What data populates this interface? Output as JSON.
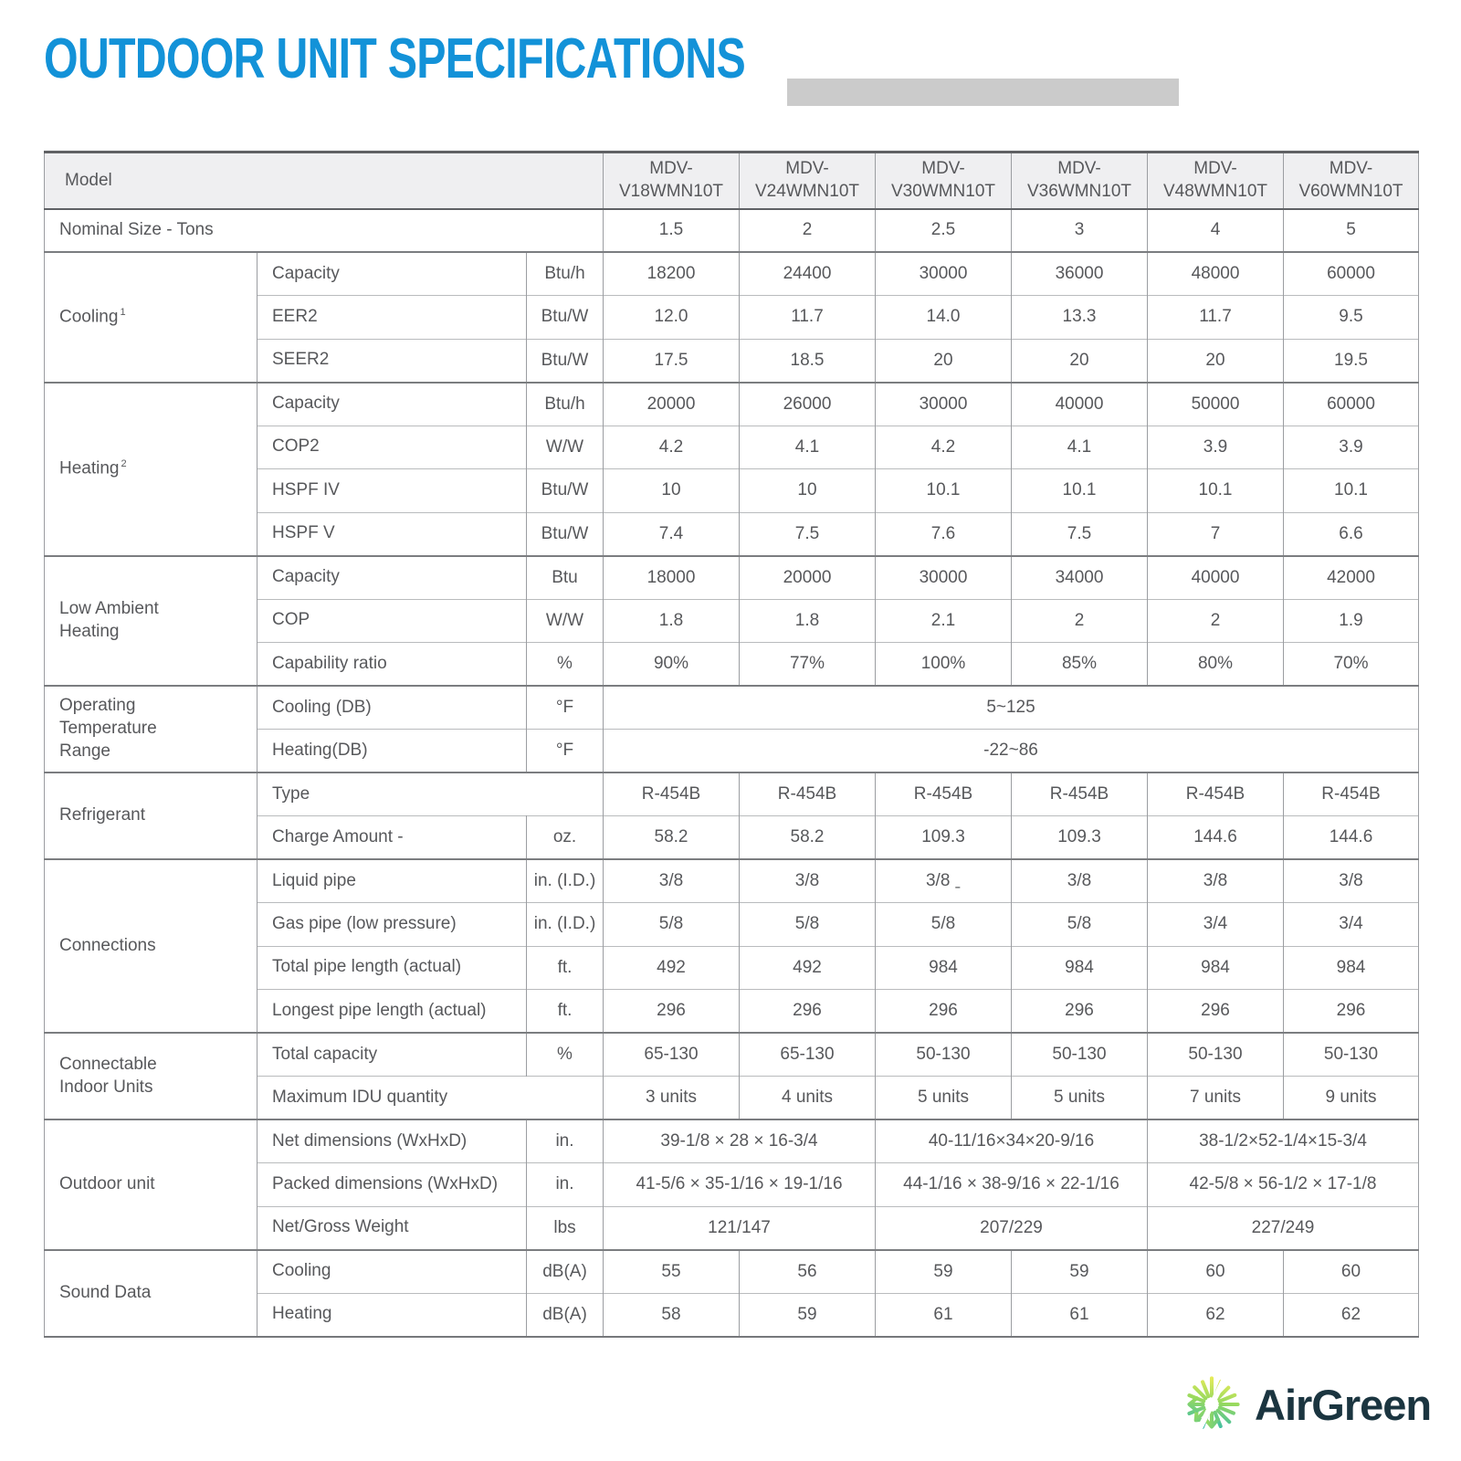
{
  "title": {
    "text": "OUTDOOR UNIT SPECIFICATIONS"
  },
  "colors": {
    "title_blue": "#1392d8",
    "header_blue": "#1d9ad9",
    "header_bg": "#efeff1",
    "title_bar_gray": "#cbcbcb",
    "border_dark": "#606164",
    "border_section": "#7b7d80",
    "border_light": "#b9bbbd",
    "text_gray": "#57585b",
    "logo_text": "#1b3540",
    "logo_gradient": [
      "#f2ee58",
      "#96d95f",
      "#27b7ba"
    ]
  },
  "table": {
    "header": {
      "model_label": "Model",
      "models": [
        {
          "l1": "MDV-",
          "l2": "V18WMN10T"
        },
        {
          "l1": "MDV-",
          "l2": "V24WMN10T"
        },
        {
          "l1": "MDV-",
          "l2": "V30WMN10T"
        },
        {
          "l1": "MDV-",
          "l2": "V36WMN10T"
        },
        {
          "l1": "MDV-",
          "l2": "V48WMN10T"
        },
        {
          "l1": "MDV-",
          "l2": "V60WMN10T"
        }
      ]
    },
    "rows": [
      {
        "name": "row-nominal-size",
        "sect": true,
        "cells": [
          {
            "text": "Nominal Size - Tons",
            "type": "label-span",
            "colspan": 3
          },
          {
            "text": "1.5"
          },
          {
            "text": "2"
          },
          {
            "text": "2.5"
          },
          {
            "text": "3"
          },
          {
            "text": "4"
          },
          {
            "text": "5"
          }
        ]
      },
      {
        "name": "row-cooling-capacity",
        "sect": true,
        "cells": [
          {
            "text": "Cooling",
            "sup": "1",
            "type": "group",
            "rowspan": 3
          },
          {
            "text": "Capacity",
            "type": "label"
          },
          {
            "text": "Btu/h",
            "type": "unit"
          },
          {
            "text": "18200"
          },
          {
            "text": "24400"
          },
          {
            "text": "30000"
          },
          {
            "text": "36000"
          },
          {
            "text": "48000"
          },
          {
            "text": "60000"
          }
        ]
      },
      {
        "name": "row-cooling-eer2",
        "cells": [
          {
            "text": "EER2",
            "type": "label"
          },
          {
            "text": "Btu/W",
            "type": "unit"
          },
          {
            "text": "12.0"
          },
          {
            "text": "11.7"
          },
          {
            "text": "14.0"
          },
          {
            "text": "13.3"
          },
          {
            "text": "11.7"
          },
          {
            "text": "9.5"
          }
        ]
      },
      {
        "name": "row-cooling-seer2",
        "cells": [
          {
            "text": "SEER2",
            "type": "label"
          },
          {
            "text": "Btu/W",
            "type": "unit"
          },
          {
            "text": "17.5"
          },
          {
            "text": "18.5"
          },
          {
            "text": "20"
          },
          {
            "text": "20"
          },
          {
            "text": "20"
          },
          {
            "text": "19.5"
          }
        ]
      },
      {
        "name": "row-heating-capacity",
        "sect": true,
        "cells": [
          {
            "text": "Heating",
            "sup": "2",
            "type": "group",
            "rowspan": 4
          },
          {
            "text": "Capacity",
            "type": "label"
          },
          {
            "text": "Btu/h",
            "type": "unit"
          },
          {
            "text": "20000"
          },
          {
            "text": "26000"
          },
          {
            "text": "30000"
          },
          {
            "text": "40000"
          },
          {
            "text": "50000"
          },
          {
            "text": "60000"
          }
        ]
      },
      {
        "name": "row-heating-cop2",
        "cells": [
          {
            "text": "COP2",
            "type": "label"
          },
          {
            "text": "W/W",
            "type": "unit"
          },
          {
            "text": "4.2"
          },
          {
            "text": "4.1"
          },
          {
            "text": "4.2"
          },
          {
            "text": "4.1"
          },
          {
            "text": "3.9"
          },
          {
            "text": "3.9"
          }
        ]
      },
      {
        "name": "row-heating-hspf-iv",
        "cells": [
          {
            "text": "HSPF IV",
            "type": "label"
          },
          {
            "text": "Btu/W",
            "type": "unit"
          },
          {
            "text": "10"
          },
          {
            "text": "10"
          },
          {
            "text": "10.1"
          },
          {
            "text": "10.1"
          },
          {
            "text": "10.1"
          },
          {
            "text": "10.1"
          }
        ]
      },
      {
        "name": "row-heating-hspf-v",
        "cells": [
          {
            "text": "HSPF V",
            "type": "label"
          },
          {
            "text": "Btu/W",
            "type": "unit"
          },
          {
            "text": "7.4"
          },
          {
            "text": "7.5"
          },
          {
            "text": "7.6"
          },
          {
            "text": "7.5"
          },
          {
            "text": "7"
          },
          {
            "text": "6.6"
          }
        ]
      },
      {
        "name": "row-lah-capacity",
        "sect": true,
        "cells": [
          {
            "text": "Low Ambient Heating",
            "type": "group",
            "rowspan": 3
          },
          {
            "text": "Capacity",
            "type": "label"
          },
          {
            "text": "Btu",
            "type": "unit"
          },
          {
            "text": "18000"
          },
          {
            "text": "20000"
          },
          {
            "text": "30000"
          },
          {
            "text": "34000"
          },
          {
            "text": "40000"
          },
          {
            "text": "42000"
          }
        ]
      },
      {
        "name": "row-lah-cop",
        "cells": [
          {
            "text": "COP",
            "type": "label"
          },
          {
            "text": "W/W",
            "type": "unit"
          },
          {
            "text": "1.8"
          },
          {
            "text": "1.8"
          },
          {
            "text": "2.1"
          },
          {
            "text": "2"
          },
          {
            "text": "2"
          },
          {
            "text": "1.9"
          }
        ]
      },
      {
        "name": "row-lah-capability-ratio",
        "cells": [
          {
            "text": "Capability ratio",
            "type": "label"
          },
          {
            "text": "%",
            "type": "unit"
          },
          {
            "text": "90%"
          },
          {
            "text": "77%"
          },
          {
            "text": "100%"
          },
          {
            "text": "85%"
          },
          {
            "text": "80%"
          },
          {
            "text": "70%"
          }
        ]
      },
      {
        "name": "row-optemp-cooling",
        "sect": true,
        "cells": [
          {
            "text": "Operating Temperature Range",
            "type": "group",
            "rowspan": 2
          },
          {
            "text": "Cooling (DB)",
            "type": "label"
          },
          {
            "text": "°F",
            "type": "unit"
          },
          {
            "text": "5~125",
            "colspan": 6
          }
        ]
      },
      {
        "name": "row-optemp-heating",
        "cells": [
          {
            "text": "Heating(DB)",
            "type": "label"
          },
          {
            "text": "°F",
            "type": "unit"
          },
          {
            "text": "-22~86",
            "colspan": 6
          }
        ]
      },
      {
        "name": "row-refrigerant-type",
        "sect": true,
        "cells": [
          {
            "text": "Refrigerant",
            "type": "group",
            "rowspan": 2
          },
          {
            "text": "Type",
            "type": "label",
            "colspan": 2
          },
          {
            "text": "R-454B"
          },
          {
            "text": "R-454B"
          },
          {
            "text": "R-454B"
          },
          {
            "text": "R-454B"
          },
          {
            "text": "R-454B"
          },
          {
            "text": "R-454B"
          }
        ]
      },
      {
        "name": "row-refrigerant-charge",
        "cells": [
          {
            "text": "Charge Amount -",
            "type": "label"
          },
          {
            "text": "oz.",
            "type": "unit"
          },
          {
            "text": "58.2"
          },
          {
            "text": "58.2"
          },
          {
            "text": "109.3"
          },
          {
            "text": "109.3"
          },
          {
            "text": "144.6"
          },
          {
            "text": "144.6"
          }
        ]
      },
      {
        "name": "row-connections-liquid-pipe",
        "sect": true,
        "cells": [
          {
            "text": "Connections",
            "type": "group",
            "rowspan": 4
          },
          {
            "text": "Liquid pipe",
            "type": "label"
          },
          {
            "text": "in. (I.D.)",
            "type": "unit"
          },
          {
            "text": "3/8"
          },
          {
            "text": "3/8"
          },
          {
            "text": "3/8 ˍ"
          },
          {
            "text": "3/8"
          },
          {
            "text": "3/8"
          },
          {
            "text": "3/8"
          }
        ]
      },
      {
        "name": "row-connections-gas-pipe",
        "cells": [
          {
            "text": "Gas pipe (low pressure)",
            "type": "label"
          },
          {
            "text": "in. (I.D.)",
            "type": "unit"
          },
          {
            "text": "5/8"
          },
          {
            "text": "5/8"
          },
          {
            "text": "5/8"
          },
          {
            "text": "5/8"
          },
          {
            "text": "3/4"
          },
          {
            "text": "3/4"
          }
        ]
      },
      {
        "name": "row-connections-total-pipe-length",
        "cells": [
          {
            "text": "Total pipe length (actual)",
            "type": "label"
          },
          {
            "text": "ft.",
            "type": "unit"
          },
          {
            "text": "492"
          },
          {
            "text": "492"
          },
          {
            "text": "984"
          },
          {
            "text": "984"
          },
          {
            "text": "984"
          },
          {
            "text": "984"
          }
        ]
      },
      {
        "name": "row-connections-longest-pipe-length",
        "cells": [
          {
            "text": "Longest pipe length (actual)",
            "type": "label"
          },
          {
            "text": "ft.",
            "type": "unit"
          },
          {
            "text": "296"
          },
          {
            "text": "296"
          },
          {
            "text": "296"
          },
          {
            "text": "296"
          },
          {
            "text": "296"
          },
          {
            "text": "296"
          }
        ]
      },
      {
        "name": "row-connectable-total-capacity",
        "sect": true,
        "cells": [
          {
            "text": "Connectable Indoor Units",
            "type": "group",
            "rowspan": 2
          },
          {
            "text": "Total capacity",
            "type": "label"
          },
          {
            "text": "%",
            "type": "unit"
          },
          {
            "text": "65-130"
          },
          {
            "text": "65-130"
          },
          {
            "text": "50-130"
          },
          {
            "text": "50-130"
          },
          {
            "text": "50-130"
          },
          {
            "text": "50-130"
          }
        ]
      },
      {
        "name": "row-connectable-max-idu",
        "cells": [
          {
            "text": "Maximum IDU quantity",
            "type": "label",
            "colspan": 2
          },
          {
            "text": "3 units"
          },
          {
            "text": "4 units"
          },
          {
            "text": "5 units"
          },
          {
            "text": "5 units"
          },
          {
            "text": "7 units"
          },
          {
            "text": "9 units"
          }
        ]
      },
      {
        "name": "row-outdoor-net-dimensions",
        "sect": true,
        "cells": [
          {
            "text": "Outdoor unit",
            "type": "group",
            "rowspan": 3
          },
          {
            "text": "Net dimensions (WxHxD)",
            "type": "label"
          },
          {
            "text": "in.",
            "type": "unit"
          },
          {
            "text": "39-1/8 × 28 × 16-3/4",
            "colspan": 2
          },
          {
            "text": "40-11/16×34×20-9/16",
            "colspan": 2
          },
          {
            "text": "38-1/2×52-1/4×15-3/4",
            "colspan": 2
          }
        ]
      },
      {
        "name": "row-outdoor-packed-dimensions",
        "cells": [
          {
            "text": "Packed dimensions (WxHxD)",
            "type": "label"
          },
          {
            "text": "in.",
            "type": "unit"
          },
          {
            "text": "41-5/6 × 35-1/16 × 19-1/16",
            "colspan": 2
          },
          {
            "text": "44-1/16 × 38-9/16 × 22-1/16",
            "colspan": 2
          },
          {
            "text": "42-5/8 × 56-1/2 × 17-1/8",
            "colspan": 2
          }
        ]
      },
      {
        "name": "row-outdoor-weight",
        "cells": [
          {
            "text": "Net/Gross Weight",
            "type": "label"
          },
          {
            "text": "lbs",
            "type": "unit"
          },
          {
            "text": "121/147",
            "colspan": 2
          },
          {
            "text": "207/229",
            "colspan": 2
          },
          {
            "text": "227/249",
            "colspan": 2
          }
        ]
      },
      {
        "name": "row-sound-cooling",
        "sect": true,
        "cells": [
          {
            "text": "Sound Data",
            "type": "group",
            "rowspan": 2
          },
          {
            "text": "Cooling",
            "type": "label"
          },
          {
            "text": "dB(A)",
            "type": "unit"
          },
          {
            "text": "55"
          },
          {
            "text": "56"
          },
          {
            "text": "59"
          },
          {
            "text": "59"
          },
          {
            "text": "60"
          },
          {
            "text": "60"
          }
        ]
      },
      {
        "name": "row-sound-heating",
        "cells": [
          {
            "text": "Heating",
            "type": "label"
          },
          {
            "text": "dB(A)",
            "type": "unit"
          },
          {
            "text": "58"
          },
          {
            "text": "59"
          },
          {
            "text": "61"
          },
          {
            "text": "61"
          },
          {
            "text": "62"
          },
          {
            "text": "62"
          }
        ]
      }
    ]
  },
  "logo": {
    "text": "AirGreen",
    "icon": "starburst-snowflake-icon"
  }
}
